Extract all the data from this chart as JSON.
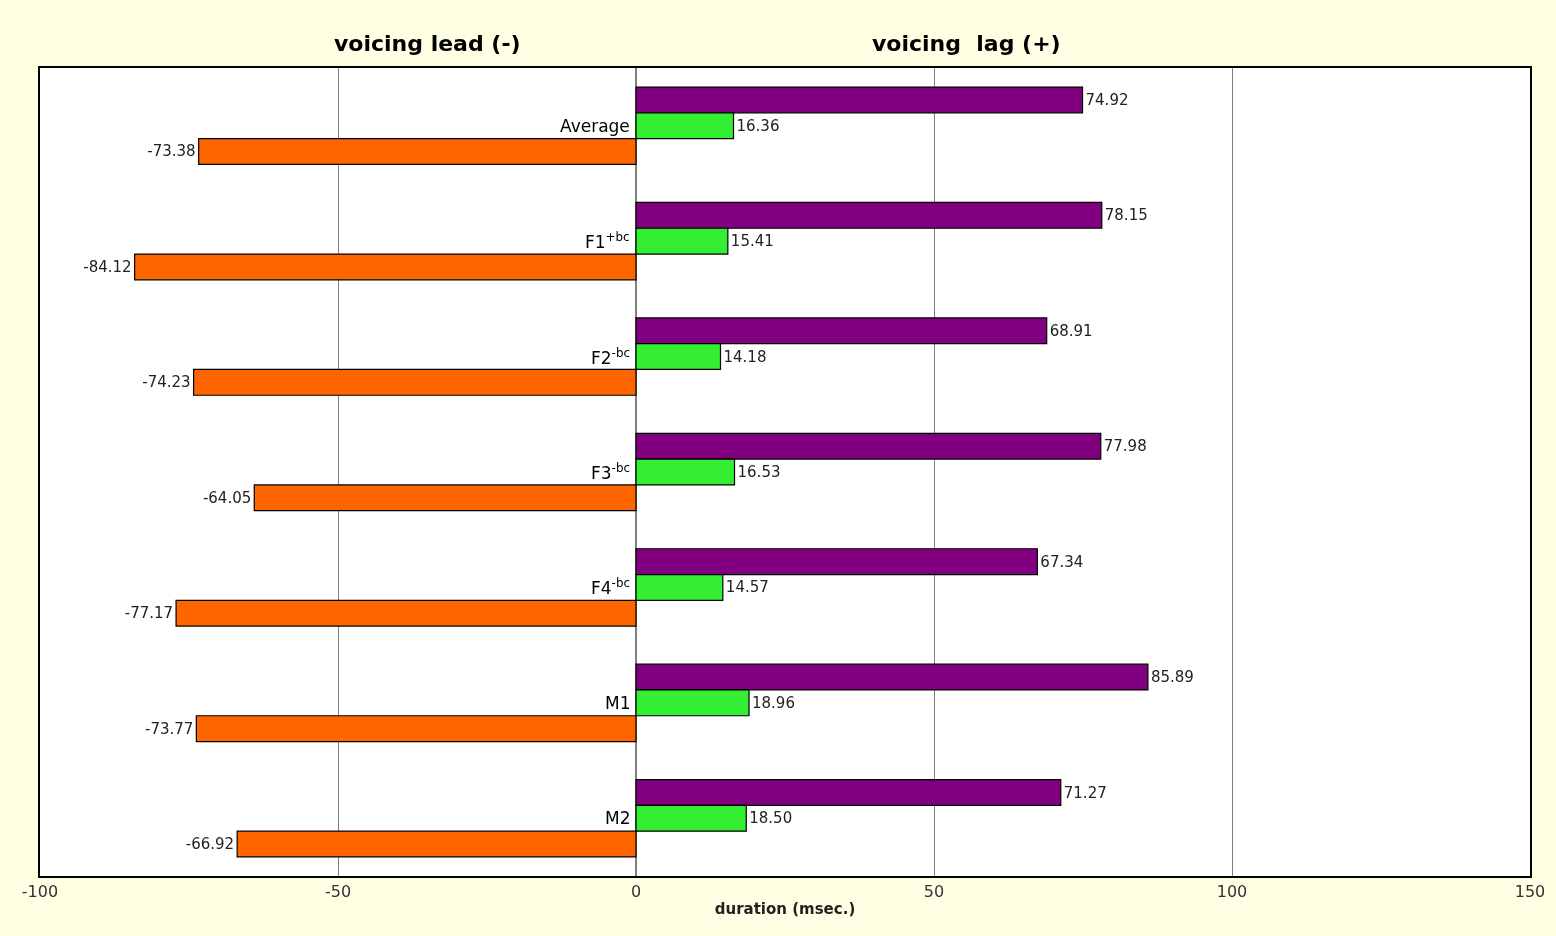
{
  "chart_data": {
    "type": "bar",
    "orientation": "horizontal",
    "xlabel": "duration (msec.)",
    "annotations": [
      "voicing lead (-)",
      "voicing  lag (+)"
    ],
    "categories": [
      "Average",
      "F1$^{+bc}$",
      "F2$^{-bc}$",
      "F3$^{-bc}$",
      "F4$^{-bc}$",
      "M1",
      "M2"
    ],
    "series": [
      {
        "color": "#800080",
        "values": [
          74.92,
          78.15,
          68.91,
          77.98,
          67.34,
          85.89,
          71.27
        ],
        "value_labels": [
          "74.92",
          "78.15",
          "68.91",
          "77.98",
          "67.34",
          "85.89",
          "71.27"
        ]
      },
      {
        "color": "#33ee33",
        "values": [
          16.36,
          15.41,
          14.18,
          16.53,
          14.57,
          18.96,
          18.5
        ],
        "value_labels": [
          "16.36",
          "15.41",
          "14.18",
          "16.53",
          "14.57",
          "18.96",
          "18.50"
        ]
      },
      {
        "color": "#ff6600",
        "values": [
          -73.38,
          -84.12,
          -74.23,
          -64.05,
          -77.17,
          -73.77,
          -66.92
        ],
        "value_labels": [
          "-73.38",
          "-84.12",
          "-74.23",
          "-64.05",
          "-77.17",
          "-73.77",
          "-66.92"
        ]
      }
    ],
    "xlim": [
      -100,
      150
    ],
    "xticks": [
      -100,
      -50,
      0,
      50,
      100,
      150
    ],
    "grid": "x"
  }
}
